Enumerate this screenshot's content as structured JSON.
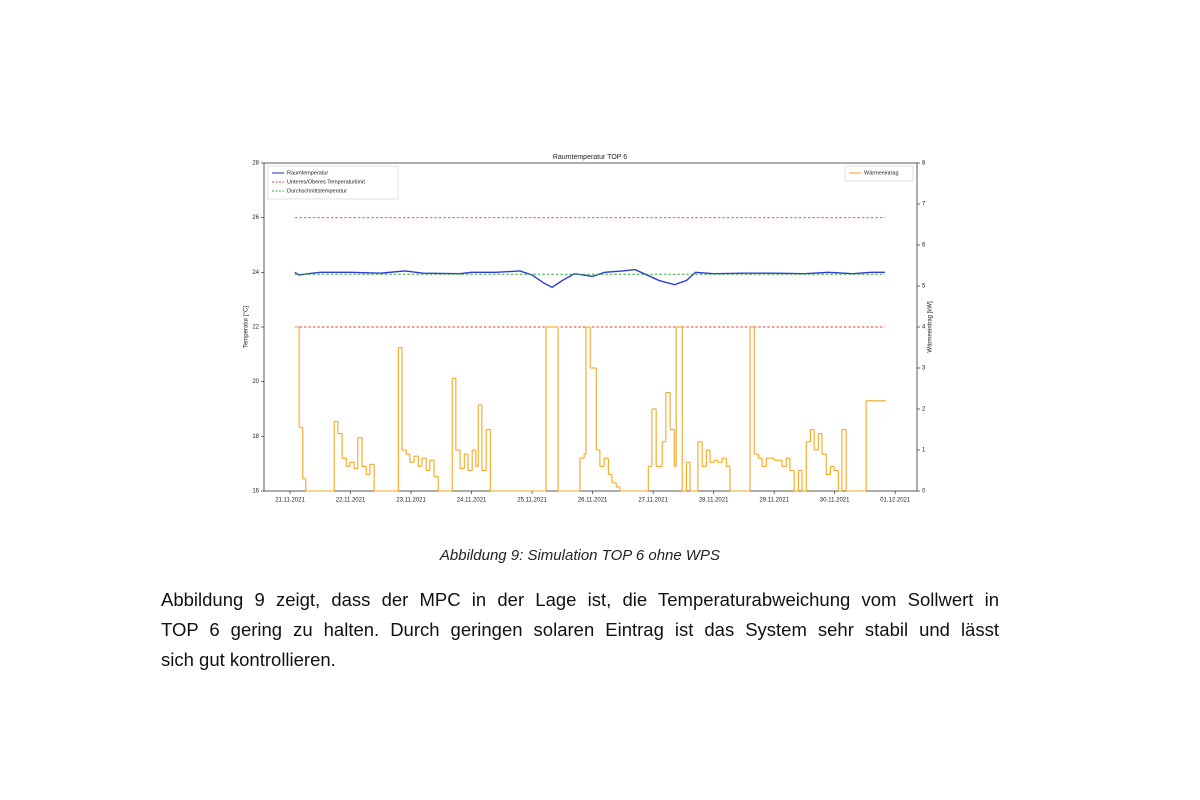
{
  "chart_data": {
    "type": "line",
    "title": "Raumtemperatur TOP 6",
    "ylabel": "Temperatur [°C]",
    "y2label": "Wärmeeintrag [kW]",
    "xlim": [
      -0.43,
      10.36
    ],
    "xticks": [
      {
        "value": 0,
        "label": "21.11.2021"
      },
      {
        "value": 1,
        "label": "22.11.2021"
      },
      {
        "value": 2,
        "label": "23.11.2021"
      },
      {
        "value": 3,
        "label": "24.11.2021"
      },
      {
        "value": 4,
        "label": "25.11.2021"
      },
      {
        "value": 5,
        "label": "26.11.2021"
      },
      {
        "value": 6,
        "label": "27.11.2021"
      },
      {
        "value": 7,
        "label": "28.11.2021"
      },
      {
        "value": 8,
        "label": "29.11.2021"
      },
      {
        "value": 9,
        "label": "30.11.2021"
      },
      {
        "value": 10,
        "label": "01.12.2021"
      }
    ],
    "ylim": [
      16,
      28
    ],
    "yticks": [
      16,
      18,
      20,
      22,
      24,
      26,
      28
    ],
    "y2lim": [
      0,
      8
    ],
    "y2ticks": [
      0,
      1,
      2,
      3,
      4,
      5,
      6,
      7,
      8
    ],
    "legend": "upper left",
    "legend2": "upper right",
    "series": [
      {
        "name": "Raumtemperatur",
        "color": "#2a3fd0",
        "dash": false,
        "x": [
          0.08,
          0.15,
          0.3,
          0.5,
          1,
          1.5,
          1.9,
          2.2,
          2.8,
          3,
          3.4,
          3.8,
          4.0,
          4.2,
          4.33,
          4.5,
          4.7,
          5.0,
          5.2,
          5.5,
          5.7,
          5.9,
          6.1,
          6.35,
          6.55,
          6.7,
          7.0,
          7.5,
          8.0,
          8.5,
          8.9,
          9.3,
          9.6,
          9.83
        ],
        "values": [
          24.0,
          23.9,
          23.95,
          24.0,
          24.0,
          23.97,
          24.05,
          23.97,
          23.95,
          24.0,
          24.0,
          24.05,
          23.9,
          23.6,
          23.45,
          23.7,
          23.95,
          23.85,
          24.0,
          24.05,
          24.1,
          23.9,
          23.7,
          23.55,
          23.7,
          24.0,
          23.95,
          23.97,
          23.97,
          23.95,
          24.0,
          23.95,
          24.0,
          24.0
        ]
      },
      {
        "name": "Unteres/Oberes Temperaturlimit",
        "color": "#e8382e",
        "dash": true,
        "x": [
          0.08,
          9.83,
          9.83,
          0.08,
          9.83
        ],
        "values": [
          26,
          26,
          null,
          22,
          22
        ]
      },
      {
        "name": "Durchschnittstemperatur",
        "color": "#3aa83a",
        "dash": true,
        "x": [
          0.08,
          9.83
        ],
        "values": [
          23.93,
          23.93
        ]
      },
      {
        "name": "Wärmeeintrag",
        "color": "#f5a623",
        "axis": "y2",
        "step": true,
        "x": [
          0.08,
          0.15,
          0.21,
          0.26,
          0.73,
          0.79,
          0.86,
          0.93,
          0.99,
          1.06,
          1.12,
          1.19,
          1.26,
          1.32,
          1.39,
          1.79,
          1.85,
          1.92,
          1.98,
          2.05,
          2.12,
          2.18,
          2.25,
          2.31,
          2.38,
          2.45,
          2.68,
          2.74,
          2.81,
          2.88,
          2.94,
          3.01,
          3.07,
          3.11,
          3.17,
          3.24,
          3.31,
          4.23,
          4.43,
          4.79,
          4.86,
          4.89,
          4.96,
          5.06,
          5.12,
          5.19,
          5.26,
          5.32,
          5.39,
          5.45,
          5.92,
          5.98,
          6.05,
          6.15,
          6.21,
          6.28,
          6.35,
          6.38,
          6.48,
          6.55,
          6.61,
          6.74,
          6.81,
          6.88,
          6.94,
          7.01,
          7.07,
          7.14,
          7.21,
          7.27,
          7.6,
          7.67,
          7.74,
          7.8,
          7.87,
          8.0,
          8.13,
          8.2,
          8.26,
          8.33,
          8.4,
          8.46,
          8.53,
          8.6,
          8.66,
          8.73,
          8.79,
          8.86,
          8.93,
          8.99,
          9.06,
          9.12,
          9.19,
          9.52,
          9.85
        ],
        "values": [
          4.0,
          1.55,
          0.3,
          0,
          1.7,
          1.4,
          0.8,
          0.6,
          0.7,
          0.55,
          1.3,
          0.6,
          0.4,
          0.65,
          0,
          3.5,
          1.0,
          0.9,
          0.7,
          0.85,
          0.6,
          0.8,
          0.5,
          0.75,
          0.35,
          0,
          2.75,
          1.0,
          0.55,
          0.9,
          0.5,
          1.0,
          0.6,
          2.1,
          0.5,
          1.5,
          0,
          4.0,
          0,
          0.8,
          0.9,
          4.0,
          3.0,
          1.0,
          0.6,
          0.8,
          0.4,
          0.2,
          0.1,
          0,
          0.6,
          2.0,
          0.6,
          1.2,
          2.4,
          1.5,
          0.6,
          4.0,
          0,
          0.7,
          0,
          1.2,
          0.6,
          1.0,
          0.7,
          0.75,
          0.7,
          0.8,
          0.6,
          0,
          4.0,
          0.9,
          0.8,
          0.6,
          0.8,
          0.75,
          0.6,
          0.8,
          0.5,
          0,
          0.5,
          0,
          1.2,
          1.5,
          1.0,
          1.4,
          0.9,
          0.4,
          0.6,
          0.5,
          0,
          1.5,
          0,
          2.2,
          2.2
        ]
      }
    ]
  },
  "caption": "Abbildung 9: Simulation TOP 6 ohne WPS",
  "paragraph": [
    "Abbildung 9 zeigt, dass der MPC in der Lage ist, die Temperaturabweichung vom Sollwert in",
    "TOP 6 gering zu halten. Durch geringen solaren Eintrag ist das System sehr stabil und lässt",
    "sich gut kontrollieren."
  ]
}
